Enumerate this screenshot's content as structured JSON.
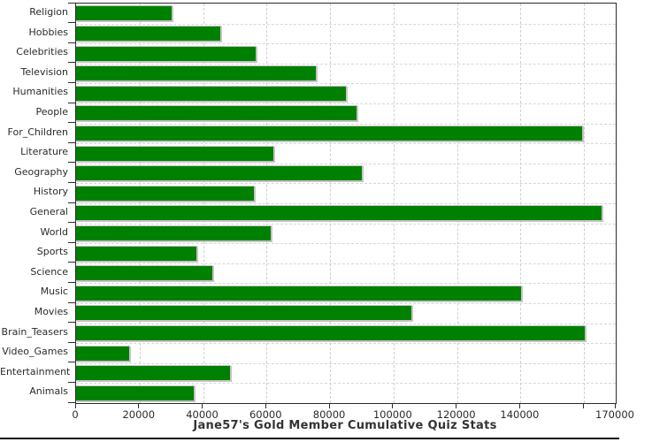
{
  "chart_data": {
    "type": "bar",
    "orientation": "horizontal",
    "title": "Jane57's Gold Member Cumulative Quiz Stats",
    "categories": [
      "Religion",
      "Hobbies",
      "Celebrities",
      "Television",
      "Humanities",
      "People",
      "For_Children",
      "Literature",
      "Geography",
      "History",
      "General",
      "World",
      "Sports",
      "Science",
      "Music",
      "Movies",
      "Brain_Teasers",
      "Video_Games",
      "Entertainment",
      "Animals"
    ],
    "values": [
      30500,
      45800,
      56900,
      75700,
      85200,
      88700,
      159700,
      62500,
      90300,
      56400,
      165700,
      61500,
      38100,
      43200,
      140400,
      105900,
      160400,
      17100,
      48800,
      37400
    ],
    "xlim": [
      0,
      170000
    ],
    "x_ticks": [
      {
        "value": 0,
        "label": "0"
      },
      {
        "value": 20000,
        "label": "20000"
      },
      {
        "value": 40000,
        "label": "40000"
      },
      {
        "value": 60000,
        "label": "60000"
      },
      {
        "value": 80000,
        "label": "80000"
      },
      {
        "value": 100000,
        "label": "100000"
      },
      {
        "value": 120000,
        "label": "120000"
      },
      {
        "value": 140000,
        "label": "140000"
      },
      {
        "value": 160000,
        "label": ""
      },
      {
        "value": 170000,
        "label": "170000"
      }
    ],
    "grid": true,
    "legend": "none",
    "colors": {
      "bar_fill": "#008000",
      "bar_outline": "#c4c4c4",
      "grid_line": "#cfcfcf",
      "axis_line": "#2b2b2b",
      "label_text": "#2b2b2b",
      "title_text": "#333333",
      "background": "#ffffff"
    }
  }
}
